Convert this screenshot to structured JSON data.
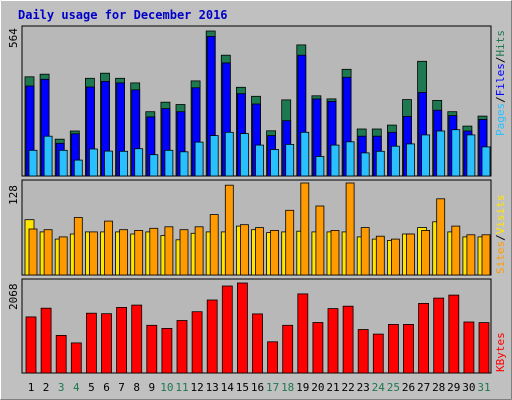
{
  "colors": {
    "background": "#c0c0c0",
    "plot_background": "#b8b8b8",
    "title": "#0000c8",
    "hits": "#1e7850",
    "files": "#0000ff",
    "pages": "#29c0ff",
    "visits": "#ff9b00",
    "sites": "#ffe600",
    "kbytes": "#ff0000",
    "weekend_day": "#1e7850",
    "weekday": "#000000"
  },
  "chart_data": [
    {
      "type": "bar",
      "title": "Daily usage for December 2016",
      "panel": "hits-files-pages",
      "ymax": 564,
      "ymax_label": "564",
      "legend": [
        "Pages",
        "Files",
        "Hits"
      ],
      "legend_sep": "/",
      "categories": [
        "1",
        "2",
        "3",
        "4",
        "5",
        "6",
        "7",
        "8",
        "9",
        "10",
        "11",
        "12",
        "13",
        "14",
        "15",
        "16",
        "17",
        "18",
        "19",
        "20",
        "21",
        "22",
        "23",
        "24",
        "25",
        "26",
        "27",
        "28",
        "29",
        "30",
        "31"
      ],
      "weekend_days": [
        3,
        4,
        10,
        11,
        17,
        18,
        24,
        25,
        31
      ],
      "series": [
        {
          "name": "Hits",
          "values": [
            386,
            396,
            143,
            175,
            380,
            400,
            380,
            362,
            250,
            287,
            278,
            370,
            564,
            470,
            345,
            310,
            176,
            296,
            510,
            312,
            300,
            415,
            183,
            183,
            198,
            297,
            446,
            294,
            250,
            194,
            233
          ]
        },
        {
          "name": "Files",
          "values": [
            350,
            376,
            127,
            164,
            346,
            368,
            362,
            335,
            230,
            262,
            250,
            343,
            543,
            440,
            320,
            280,
            157,
            215,
            470,
            300,
            290,
            384,
            155,
            155,
            170,
            232,
            325,
            256,
            235,
            175,
            220
          ]
        },
        {
          "name": "Pages",
          "values": [
            100,
            155,
            100,
            62,
            105,
            97,
            96,
            106,
            83,
            100,
            94,
            132,
            157,
            170,
            165,
            120,
            103,
            123,
            170,
            76,
            120,
            133,
            90,
            96,
            116,
            125,
            160,
            175,
            180,
            160,
            113
          ]
        }
      ]
    },
    {
      "type": "bar",
      "panel": "visits-sites",
      "ymax": 128,
      "ymax_label": "128",
      "legend": [
        "Sites",
        "Visits"
      ],
      "legend_sep": "/",
      "series": [
        {
          "name": "Visits",
          "values": [
            64,
            63,
            53,
            80,
            60,
            75,
            63,
            62,
            65,
            67,
            63,
            67,
            84,
            125,
            70,
            66,
            62,
            90,
            128,
            96,
            62,
            128,
            66,
            54,
            50,
            57,
            62,
            106,
            68,
            56,
            56
          ]
        },
        {
          "name": "Sites",
          "values": [
            77,
            60,
            50,
            57,
            60,
            60,
            60,
            57,
            60,
            55,
            49,
            58,
            60,
            60,
            68,
            63,
            59,
            60,
            61,
            60,
            60,
            60,
            53,
            50,
            48,
            57,
            66,
            74,
            60,
            53,
            53
          ]
        }
      ]
    },
    {
      "type": "bar",
      "panel": "kbytes",
      "ymax": 2068,
      "ymax_label": "2068",
      "legend": [
        "KBytes"
      ],
      "series": [
        {
          "name": "KBytes",
          "values": [
            1290,
            1488,
            864,
            691,
            1374,
            1362,
            1508,
            1560,
            1097,
            1024,
            1207,
            1409,
            1678,
            2000,
            2068,
            1357,
            716,
            1097,
            1818,
            1161,
            1480,
            1534,
            999,
            893,
            1117,
            1117,
            1600,
            1720,
            1789,
            1172,
            1158
          ]
        }
      ]
    }
  ]
}
